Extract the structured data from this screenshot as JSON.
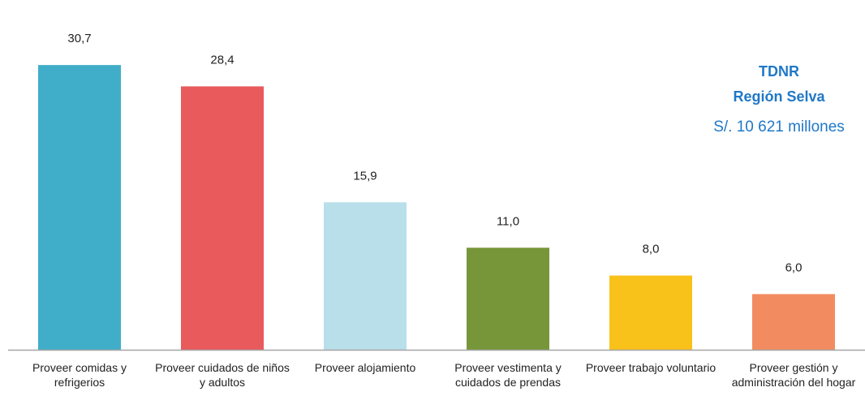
{
  "chart_data": {
    "type": "bar",
    "categories": [
      [
        "Proveer comidas y",
        "refrigerios"
      ],
      [
        "Proveer cuidados de niños",
        "y adultos"
      ],
      [
        "Proveer alojamiento"
      ],
      [
        "Proveer vestimenta y",
        "cuidados de prendas"
      ],
      [
        "Proveer trabajo voluntario"
      ],
      [
        "Proveer gestión y",
        "administración del hogar"
      ]
    ],
    "values": [
      30.7,
      28.4,
      15.9,
      11.0,
      8.0,
      6.0
    ],
    "data_labels": [
      "30,7",
      "28,4",
      "15,9",
      "11,0",
      "8,0",
      "6,0"
    ],
    "colors": [
      "#40aec8",
      "#e85a5c",
      "#b9dfea",
      "#77963a",
      "#f9c21a",
      "#f28c60"
    ],
    "ylim": [
      0,
      35
    ],
    "grid": false,
    "axis_color": "#a6a6a6"
  },
  "annotation": {
    "title": "TDNR",
    "subtitle": "Región Selva",
    "total": "S/. 10 621 millones"
  }
}
